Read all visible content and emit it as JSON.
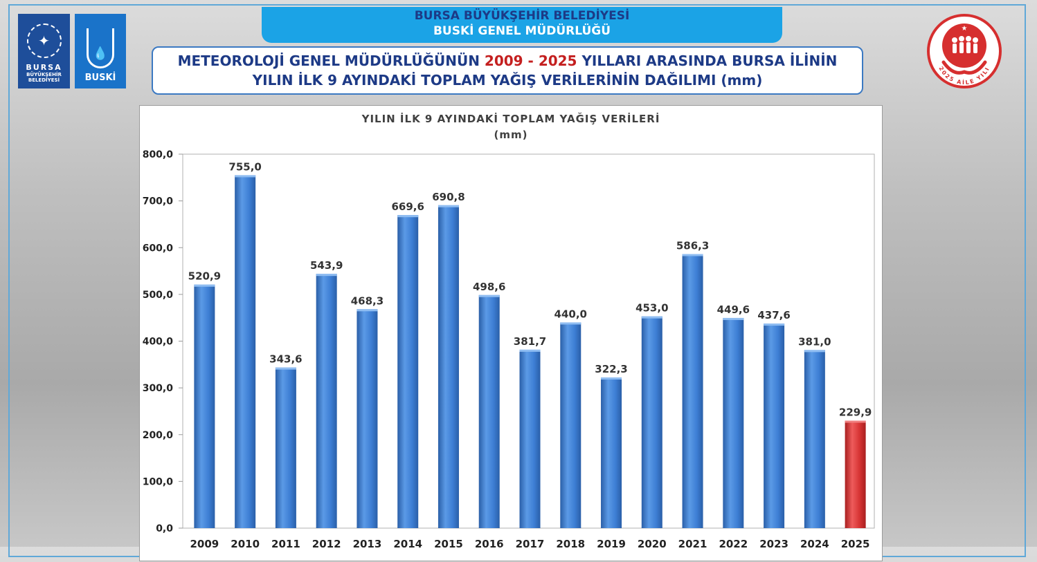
{
  "header": {
    "banner_line1": "BURSA BÜYÜKŞEHİR BELEDİYESİ",
    "banner_line2": "BUSKİ GENEL MÜDÜRLÜĞÜ",
    "title_line1_a": "METEOROLOJİ GENEL MÜDÜRLÜĞÜNÜN ",
    "title_line1_years": "2009 - 2025",
    "title_line1_b": " YILLARI ARASINDA BURSA İLİNİN",
    "title_line2": "YILIN İLK 9 AYINDAKİ TOPLAM YAĞIŞ VERİLERİNİN DAĞILIMI (mm)"
  },
  "logos": {
    "bbb_name": "BURSA",
    "bbb_sub1": "BÜYÜKŞEHİR",
    "bbb_sub2": "BELEDİYESİ",
    "buski_name": "BUSKİ",
    "aile_text": "2025 AİLE YILI"
  },
  "colors": {
    "bar": "#3d7ed4",
    "bar_highlight": "#d63434",
    "banner": "#1ba3e6",
    "title_text": "#1d3a86",
    "accent_red": "#c41f1f"
  },
  "chart_data": {
    "type": "bar",
    "title": "YILIN İLK 9 AYINDAKİ TOPLAM YAĞIŞ VERİLERİ",
    "subtitle": "(mm)",
    "categories": [
      "2009",
      "2010",
      "2011",
      "2012",
      "2013",
      "2014",
      "2015",
      "2016",
      "2017",
      "2018",
      "2019",
      "2020",
      "2021",
      "2022",
      "2023",
      "2024",
      "2025"
    ],
    "values": [
      520.9,
      755.0,
      343.6,
      543.9,
      468.3,
      669.6,
      690.8,
      498.6,
      381.7,
      440.0,
      322.3,
      453.0,
      586.3,
      449.6,
      437.6,
      381.0,
      229.9
    ],
    "value_labels": [
      "520,9",
      "755,0",
      "343,6",
      "543,9",
      "468,3",
      "669,6",
      "690,8",
      "498,6",
      "381,7",
      "440,0",
      "322,3",
      "453,0",
      "586,3",
      "449,6",
      "437,6",
      "381,0",
      "229,9"
    ],
    "highlight_category": "2025",
    "ylim": [
      0,
      800
    ],
    "yticks": [
      "0,0",
      "100,0",
      "200,0",
      "300,0",
      "400,0",
      "500,0",
      "600,0",
      "700,0",
      "800,0"
    ],
    "xlabel": "",
    "ylabel": "",
    "grid": false,
    "legend": "none"
  }
}
